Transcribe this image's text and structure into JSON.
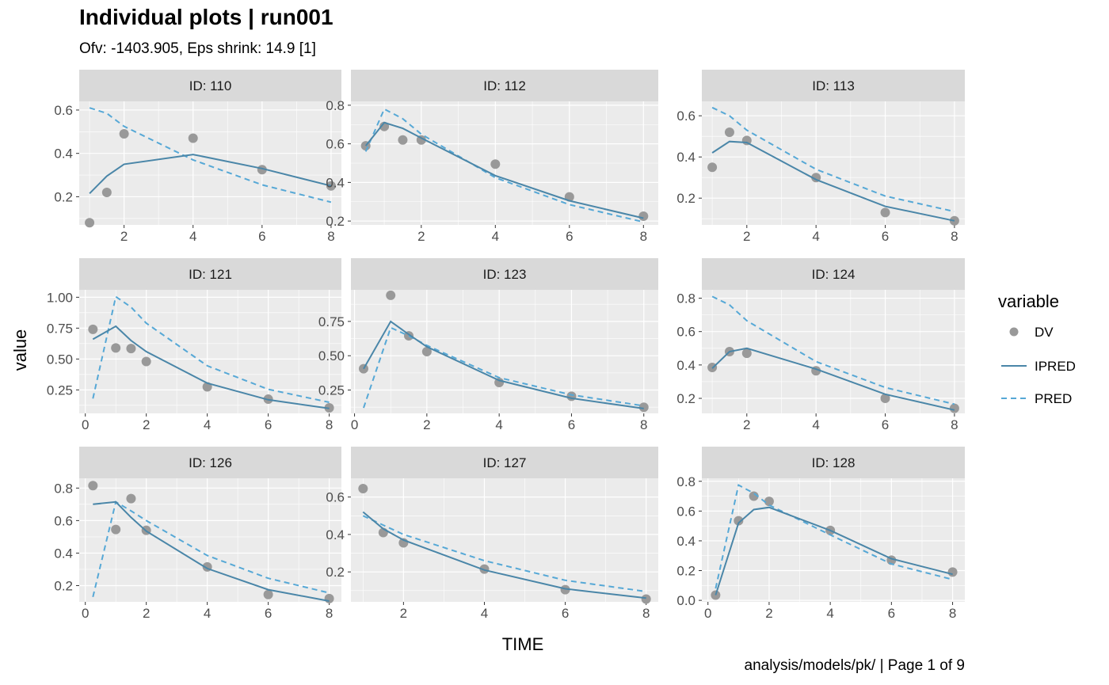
{
  "title": "Individual plots | run001",
  "subtitle": "Ofv: -1403.905, Eps shrink: 14.9 [1]",
  "caption": "analysis/models/pk/ | Page 1 of 9",
  "colors": {
    "DV": "#999999",
    "IPRED": "#4a86a8",
    "PRED": "#56a8d6",
    "panel_bg": "#ebebeb",
    "strip_bg": "#d9d9d9",
    "grid": "#ffffff"
  },
  "chart_data": {
    "type": "line",
    "xlabel": "TIME",
    "ylabel": "value",
    "legend": {
      "title": "variable",
      "position": "right",
      "entries": [
        "DV",
        "IPRED",
        "PRED"
      ]
    },
    "grid": true,
    "panels": [
      {
        "label": "ID: 110",
        "xlim": [
          0.7,
          8.3
        ],
        "ylim": [
          0.07,
          0.64
        ],
        "xticks": [
          2,
          4,
          6,
          8
        ],
        "yticks": [
          0.2,
          0.4,
          0.6
        ],
        "ytick_labels": [
          "0.2",
          "0.4",
          "0.6"
        ],
        "DV": [
          [
            1,
            0.08
          ],
          [
            1.5,
            0.22
          ],
          [
            2,
            0.49
          ],
          [
            4,
            0.47
          ],
          [
            6,
            0.325
          ],
          [
            8,
            0.25
          ]
        ],
        "IPRED": [
          [
            1,
            0.215
          ],
          [
            1.5,
            0.295
          ],
          [
            2,
            0.35
          ],
          [
            4,
            0.395
          ],
          [
            6,
            0.33
          ],
          [
            8,
            0.25
          ]
        ],
        "PRED": [
          [
            1,
            0.61
          ],
          [
            1.5,
            0.585
          ],
          [
            2,
            0.525
          ],
          [
            4,
            0.37
          ],
          [
            6,
            0.255
          ],
          [
            8,
            0.175
          ]
        ]
      },
      {
        "label": "ID: 112",
        "xlim": [
          0.1,
          8.4
        ],
        "ylim": [
          0.18,
          0.82
        ],
        "xticks": [
          2,
          4,
          6,
          8
        ],
        "yticks": [
          0.2,
          0.4,
          0.6,
          0.8
        ],
        "ytick_labels": [
          "0.2",
          "0.4",
          "0.6",
          "0.8"
        ],
        "DV": [
          [
            0.5,
            0.59
          ],
          [
            1,
            0.69
          ],
          [
            1.5,
            0.62
          ],
          [
            2,
            0.62
          ],
          [
            4,
            0.495
          ],
          [
            6,
            0.325
          ],
          [
            8,
            0.225
          ]
        ],
        "IPRED": [
          [
            0.5,
            0.59
          ],
          [
            1,
            0.71
          ],
          [
            1.5,
            0.68
          ],
          [
            2,
            0.63
          ],
          [
            4,
            0.435
          ],
          [
            6,
            0.305
          ],
          [
            8,
            0.215
          ]
        ],
        "PRED": [
          [
            0.5,
            0.56
          ],
          [
            1,
            0.78
          ],
          [
            1.5,
            0.73
          ],
          [
            2,
            0.65
          ],
          [
            4,
            0.425
          ],
          [
            6,
            0.285
          ],
          [
            8,
            0.195
          ]
        ]
      },
      {
        "label": "ID: 113",
        "xlim": [
          0.7,
          8.3
        ],
        "ylim": [
          0.07,
          0.67
        ],
        "xticks": [
          2,
          4,
          6,
          8
        ],
        "yticks": [
          0.2,
          0.4,
          0.6
        ],
        "ytick_labels": [
          "0.2",
          "0.4",
          "0.6"
        ],
        "DV": [
          [
            1,
            0.35
          ],
          [
            1.5,
            0.52
          ],
          [
            2,
            0.48
          ],
          [
            4,
            0.3
          ],
          [
            6,
            0.13
          ],
          [
            8,
            0.09
          ]
        ],
        "IPRED": [
          [
            1,
            0.42
          ],
          [
            1.5,
            0.475
          ],
          [
            2,
            0.47
          ],
          [
            4,
            0.29
          ],
          [
            6,
            0.16
          ],
          [
            8,
            0.09
          ]
        ],
        "PRED": [
          [
            1,
            0.64
          ],
          [
            1.5,
            0.6
          ],
          [
            2,
            0.53
          ],
          [
            4,
            0.34
          ],
          [
            6,
            0.21
          ],
          [
            8,
            0.135
          ]
        ]
      },
      {
        "label": "ID: 121",
        "xlim": [
          -0.2,
          8.4
        ],
        "ylim": [
          0.06,
          1.06
        ],
        "xticks": [
          0,
          2,
          4,
          6,
          8
        ],
        "yticks": [
          0.25,
          0.5,
          0.75,
          1.0
        ],
        "ytick_labels": [
          "0.25",
          "0.50",
          "0.75",
          "1.00"
        ],
        "DV": [
          [
            0.25,
            0.74
          ],
          [
            1,
            0.59
          ],
          [
            1.5,
            0.585
          ],
          [
            2,
            0.48
          ],
          [
            4,
            0.275
          ],
          [
            6,
            0.175
          ],
          [
            8,
            0.105
          ]
        ],
        "IPRED": [
          [
            0.25,
            0.66
          ],
          [
            1,
            0.765
          ],
          [
            1.5,
            0.65
          ],
          [
            2,
            0.56
          ],
          [
            4,
            0.305
          ],
          [
            6,
            0.17
          ],
          [
            8,
            0.1
          ]
        ],
        "PRED": [
          [
            0.25,
            0.18
          ],
          [
            1,
            1.005
          ],
          [
            1.5,
            0.92
          ],
          [
            2,
            0.79
          ],
          [
            4,
            0.445
          ],
          [
            6,
            0.255
          ],
          [
            8,
            0.15
          ]
        ]
      },
      {
        "label": "ID: 123",
        "xlim": [
          -0.1,
          8.4
        ],
        "ylim": [
          0.08,
          0.98
        ],
        "xticks": [
          0,
          2,
          4,
          6,
          8
        ],
        "yticks": [
          0.25,
          0.5,
          0.75
        ],
        "ytick_labels": [
          "0.25",
          "0.50",
          "0.75"
        ],
        "DV": [
          [
            0.25,
            0.405
          ],
          [
            1,
            0.94
          ],
          [
            1.5,
            0.645
          ],
          [
            2,
            0.53
          ],
          [
            4,
            0.305
          ],
          [
            6,
            0.205
          ],
          [
            8,
            0.125
          ]
        ],
        "IPRED": [
          [
            0.25,
            0.405
          ],
          [
            1,
            0.75
          ],
          [
            1.5,
            0.655
          ],
          [
            2,
            0.565
          ],
          [
            4,
            0.32
          ],
          [
            6,
            0.19
          ],
          [
            8,
            0.115
          ]
        ],
        "PRED": [
          [
            0.25,
            0.12
          ],
          [
            1,
            0.705
          ],
          [
            1.5,
            0.645
          ],
          [
            2,
            0.575
          ],
          [
            4,
            0.34
          ],
          [
            6,
            0.215
          ],
          [
            8,
            0.135
          ]
        ]
      },
      {
        "label": "ID: 124",
        "xlim": [
          0.7,
          8.3
        ],
        "ylim": [
          0.11,
          0.85
        ],
        "xticks": [
          2,
          4,
          6,
          8
        ],
        "yticks": [
          0.2,
          0.4,
          0.6,
          0.8
        ],
        "ytick_labels": [
          "0.2",
          "0.4",
          "0.6",
          "0.8"
        ],
        "DV": [
          [
            1,
            0.385
          ],
          [
            1.5,
            0.48
          ],
          [
            2,
            0.47
          ],
          [
            4,
            0.365
          ],
          [
            6,
            0.2
          ],
          [
            8,
            0.14
          ]
        ],
        "IPRED": [
          [
            1,
            0.38
          ],
          [
            1.5,
            0.48
          ],
          [
            2,
            0.5
          ],
          [
            4,
            0.375
          ],
          [
            6,
            0.225
          ],
          [
            8,
            0.13
          ]
        ],
        "PRED": [
          [
            1,
            0.81
          ],
          [
            1.5,
            0.76
          ],
          [
            2,
            0.665
          ],
          [
            4,
            0.42
          ],
          [
            6,
            0.265
          ],
          [
            8,
            0.165
          ]
        ]
      },
      {
        "label": "ID: 126",
        "xlim": [
          -0.2,
          8.4
        ],
        "ylim": [
          0.1,
          0.86
        ],
        "xticks": [
          0,
          2,
          4,
          6,
          8
        ],
        "yticks": [
          0.2,
          0.4,
          0.6,
          0.8
        ],
        "ytick_labels": [
          "0.2",
          "0.4",
          "0.6",
          "0.8"
        ],
        "DV": [
          [
            0.25,
            0.815
          ],
          [
            1,
            0.545
          ],
          [
            1.5,
            0.735
          ],
          [
            2,
            0.54
          ],
          [
            4,
            0.315
          ],
          [
            6,
            0.145
          ],
          [
            8,
            0.12
          ]
        ],
        "IPRED": [
          [
            0.25,
            0.7
          ],
          [
            1,
            0.715
          ],
          [
            1.5,
            0.62
          ],
          [
            2,
            0.535
          ],
          [
            4,
            0.305
          ],
          [
            6,
            0.175
          ],
          [
            8,
            0.105
          ]
        ],
        "PRED": [
          [
            0.25,
            0.13
          ],
          [
            1,
            0.715
          ],
          [
            1.5,
            0.66
          ],
          [
            2,
            0.6
          ],
          [
            4,
            0.385
          ],
          [
            6,
            0.245
          ],
          [
            8,
            0.155
          ]
        ]
      },
      {
        "label": "ID: 127",
        "xlim": [
          0.7,
          8.3
        ],
        "ylim": [
          0.04,
          0.7
        ],
        "xticks": [
          2,
          4,
          6,
          8
        ],
        "yticks": [
          0.2,
          0.4,
          0.6
        ],
        "ytick_labels": [
          "0.2",
          "0.4",
          "0.6"
        ],
        "DV": [
          [
            1,
            0.645
          ],
          [
            1.5,
            0.41
          ],
          [
            2,
            0.355
          ],
          [
            4,
            0.215
          ],
          [
            6,
            0.105
          ],
          [
            8,
            0.055
          ]
        ],
        "IPRED": [
          [
            1,
            0.52
          ],
          [
            1.5,
            0.43
          ],
          [
            2,
            0.37
          ],
          [
            4,
            0.21
          ],
          [
            6,
            0.11
          ],
          [
            8,
            0.06
          ]
        ],
        "PRED": [
          [
            1,
            0.5
          ],
          [
            1.5,
            0.45
          ],
          [
            2,
            0.4
          ],
          [
            4,
            0.26
          ],
          [
            6,
            0.155
          ],
          [
            8,
            0.095
          ]
        ]
      },
      {
        "label": "ID: 128",
        "xlim": [
          -0.2,
          8.4
        ],
        "ylim": [
          -0.01,
          0.82
        ],
        "xticks": [
          0,
          2,
          4,
          6,
          8
        ],
        "yticks": [
          0.0,
          0.2,
          0.4,
          0.6,
          0.8
        ],
        "ytick_labels": [
          "0.0",
          "0.2",
          "0.4",
          "0.6",
          "0.8"
        ],
        "DV": [
          [
            0.25,
            0.035
          ],
          [
            1,
            0.535
          ],
          [
            1.5,
            0.7
          ],
          [
            2,
            0.665
          ],
          [
            4,
            0.47
          ],
          [
            6,
            0.27
          ],
          [
            8,
            0.19
          ]
        ],
        "IPRED": [
          [
            0.25,
            0.035
          ],
          [
            1,
            0.52
          ],
          [
            1.5,
            0.61
          ],
          [
            2,
            0.625
          ],
          [
            4,
            0.47
          ],
          [
            6,
            0.28
          ],
          [
            8,
            0.175
          ]
        ],
        "PRED": [
          [
            0.25,
            0.08
          ],
          [
            1,
            0.775
          ],
          [
            1.5,
            0.72
          ],
          [
            2,
            0.64
          ],
          [
            4,
            0.44
          ],
          [
            6,
            0.245
          ],
          [
            8,
            0.14
          ]
        ]
      }
    ]
  }
}
